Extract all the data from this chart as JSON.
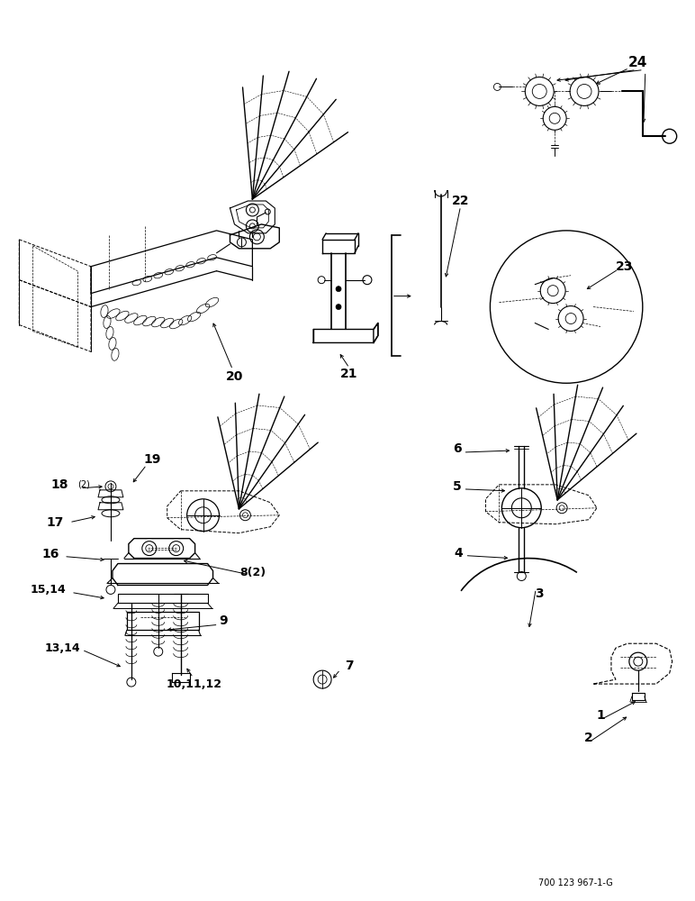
{
  "bg_color": "#ffffff",
  "line_color": "#000000",
  "fig_width": 7.72,
  "fig_height": 10.0,
  "dpi": 100,
  "watermark": "700 123 967-1-G"
}
